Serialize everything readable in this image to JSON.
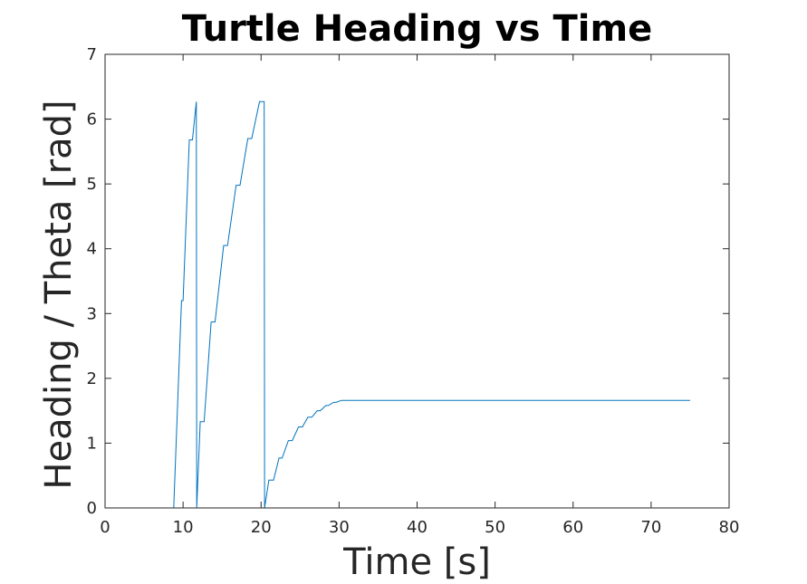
{
  "chart_data": {
    "type": "line",
    "title": "Turtle Heading vs Time",
    "xlabel": "Time [s]",
    "ylabel": "Heading / Theta [rad]",
    "xlim": [
      0,
      80
    ],
    "ylim": [
      0,
      7
    ],
    "xticks": [
      "0",
      "10",
      "20",
      "30",
      "40",
      "50",
      "60",
      "70",
      "80"
    ],
    "yticks": [
      "0",
      "1",
      "2",
      "3",
      "4",
      "5",
      "6",
      "7"
    ],
    "grid": false,
    "line_color": "#0072BD",
    "series": [
      {
        "x": [
          0,
          8.8,
          9.8,
          10.0,
          10.8,
          11.2,
          11.7,
          11.75,
          12.2,
          12.7,
          13.6,
          14.1,
          15.2,
          15.7,
          16.8,
          17.3,
          18.3,
          18.8,
          19.8,
          20.1,
          20.4,
          20.45,
          21.0,
          21.6,
          22.3,
          22.7,
          23.5,
          24.0,
          24.8,
          25.3,
          26.0,
          26.5,
          27.2,
          27.6,
          28.3,
          28.6,
          29.3,
          29.6,
          30.3,
          40,
          50,
          60,
          70,
          75
        ],
        "y": [
          0,
          0,
          3.2,
          3.2,
          5.68,
          5.68,
          6.27,
          0,
          1.33,
          1.33,
          2.87,
          2.87,
          4.05,
          4.05,
          4.98,
          4.98,
          5.7,
          5.7,
          6.27,
          6.27,
          6.27,
          0,
          0.43,
          0.43,
          0.77,
          0.77,
          1.04,
          1.04,
          1.25,
          1.25,
          1.4,
          1.4,
          1.5,
          1.5,
          1.58,
          1.58,
          1.63,
          1.63,
          1.66,
          1.66,
          1.66,
          1.66,
          1.66,
          1.66
        ]
      }
    ]
  }
}
